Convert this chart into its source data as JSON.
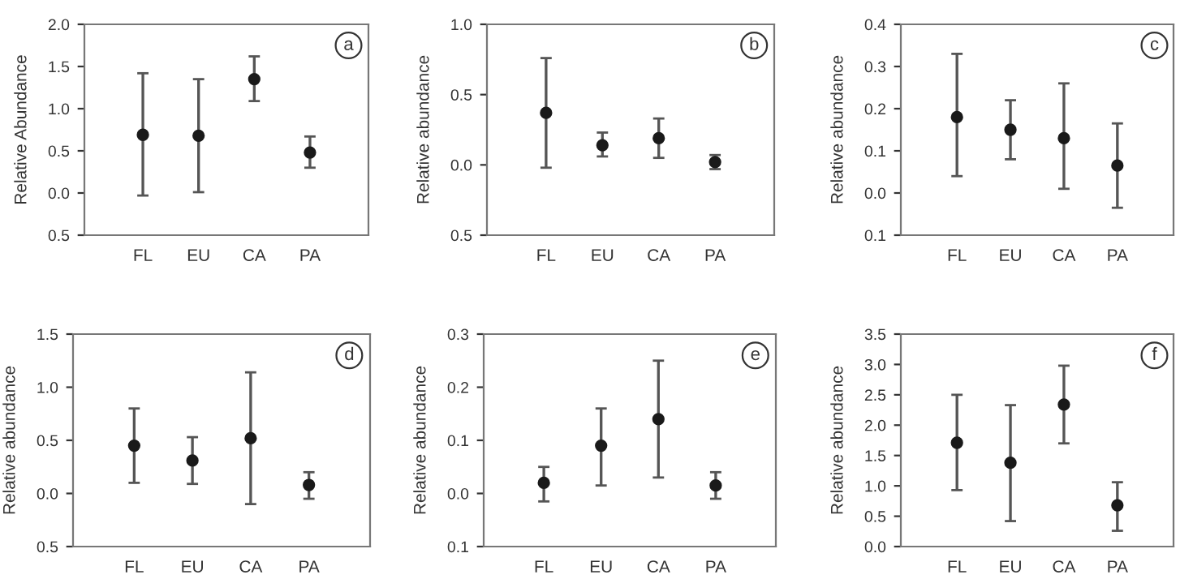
{
  "chart_data": [
    {
      "type": "scatter",
      "ylabel": "Relative Abundance",
      "annotations": [
        "a"
      ],
      "categories": [
        "FL",
        "EU",
        "CA",
        "PA"
      ],
      "marker": "circle",
      "grid": false,
      "legend": false,
      "series": [
        {
          "color": "#1a1a1a",
          "values": [
            0.69,
            0.68,
            1.35,
            0.48
          ],
          "errors": [
            [
              -0.03,
              1.42
            ],
            [
              0.01,
              1.35
            ],
            [
              1.09,
              1.62
            ],
            [
              0.3,
              0.67
            ]
          ]
        }
      ],
      "ylim": [
        -0.5,
        2.0
      ],
      "yticks": [
        {
          "value": -0.5,
          "label": "0.5"
        },
        {
          "value": 0,
          "label": "0.0"
        },
        0.5,
        {
          "value": 1,
          "label": "1.0"
        },
        1.5,
        {
          "value": 2,
          "label": "2.0"
        }
      ]
    },
    {
      "type": "scatter",
      "ylabel": "Relative abundance",
      "annotations": [
        "b"
      ],
      "categories": [
        "FL",
        "EU",
        "CA",
        "PA"
      ],
      "marker": "circle",
      "grid": false,
      "legend": false,
      "series": [
        {
          "color": "#1a1a1a",
          "values": [
            0.37,
            0.14,
            0.19,
            0.02
          ],
          "errors": [
            [
              -0.02,
              0.76
            ],
            [
              0.06,
              0.23
            ],
            [
              0.05,
              0.33
            ],
            [
              -0.03,
              0.07
            ]
          ]
        }
      ],
      "ylim": [
        -0.5,
        1.0
      ],
      "yticks": [
        {
          "value": -0.5,
          "label": "0.5"
        },
        {
          "value": 0,
          "label": "0.0"
        },
        0.5,
        {
          "value": 1,
          "label": "1.0"
        }
      ]
    },
    {
      "type": "scatter",
      "ylabel": "Relative abundance",
      "annotations": [
        "c"
      ],
      "categories": [
        "FL",
        "EU",
        "CA",
        "PA"
      ],
      "marker": "circle",
      "grid": false,
      "legend": false,
      "series": [
        {
          "color": "#1a1a1a",
          "values": [
            0.18,
            0.15,
            0.13,
            0.065
          ],
          "errors": [
            [
              0.04,
              0.33
            ],
            [
              0.08,
              0.22
            ],
            [
              0.01,
              0.26
            ],
            [
              -0.035,
              0.165
            ]
          ]
        }
      ],
      "ylim": [
        -0.1,
        0.4
      ],
      "yticks": [
        {
          "value": -0.1,
          "label": "0.1"
        },
        {
          "value": 0,
          "label": "0.0"
        },
        0.1,
        0.2,
        0.3,
        0.4
      ]
    },
    {
      "type": "scatter",
      "ylabel": "Relative abundance",
      "annotations": [
        "d"
      ],
      "categories": [
        "FL",
        "EU",
        "CA",
        "PA"
      ],
      "marker": "circle",
      "grid": false,
      "legend": false,
      "series": [
        {
          "color": "#1a1a1a",
          "values": [
            0.45,
            0.31,
            0.52,
            0.08
          ],
          "errors": [
            [
              0.1,
              0.8
            ],
            [
              0.09,
              0.53
            ],
            [
              -0.1,
              1.14
            ],
            [
              -0.05,
              0.2
            ]
          ]
        }
      ],
      "ylim": [
        -0.5,
        1.5
      ],
      "yticks": [
        {
          "value": -0.5,
          "label": "0.5"
        },
        {
          "value": 0,
          "label": "0.0"
        },
        0.5,
        {
          "value": 1,
          "label": "1.0"
        },
        1.5
      ]
    },
    {
      "type": "scatter",
      "ylabel": "Relative abundance",
      "annotations": [
        "e"
      ],
      "categories": [
        "FL",
        "EU",
        "CA",
        "PA"
      ],
      "marker": "circle",
      "grid": false,
      "legend": false,
      "series": [
        {
          "color": "#1a1a1a",
          "values": [
            0.02,
            0.09,
            0.14,
            0.015
          ],
          "errors": [
            [
              -0.015,
              0.05
            ],
            [
              0.015,
              0.16
            ],
            [
              0.03,
              0.25
            ],
            [
              -0.01,
              0.04
            ]
          ]
        }
      ],
      "ylim": [
        -0.1,
        0.3
      ],
      "yticks": [
        {
          "value": -0.1,
          "label": "0.1"
        },
        {
          "value": 0,
          "label": "0.0"
        },
        0.1,
        0.2,
        0.3
      ]
    },
    {
      "type": "scatter",
      "ylabel": "Relative abundance",
      "annotations": [
        "f"
      ],
      "categories": [
        "FL",
        "EU",
        "CA",
        "PA"
      ],
      "marker": "circle",
      "grid": false,
      "legend": false,
      "series": [
        {
          "color": "#1a1a1a",
          "values": [
            1.71,
            1.38,
            2.34,
            0.68
          ],
          "errors": [
            [
              0.93,
              2.5
            ],
            [
              0.42,
              2.33
            ],
            [
              1.7,
              2.98
            ],
            [
              0.26,
              1.06
            ]
          ]
        }
      ],
      "ylim": [
        0.0,
        3.5
      ],
      "yticks": [
        {
          "value": 0,
          "label": "0.0"
        },
        0.5,
        {
          "value": 1,
          "label": "1.0"
        },
        1.5,
        {
          "value": 2,
          "label": "2.0"
        },
        2.5,
        {
          "value": 3,
          "label": "3.0"
        },
        3.5
      ]
    }
  ]
}
